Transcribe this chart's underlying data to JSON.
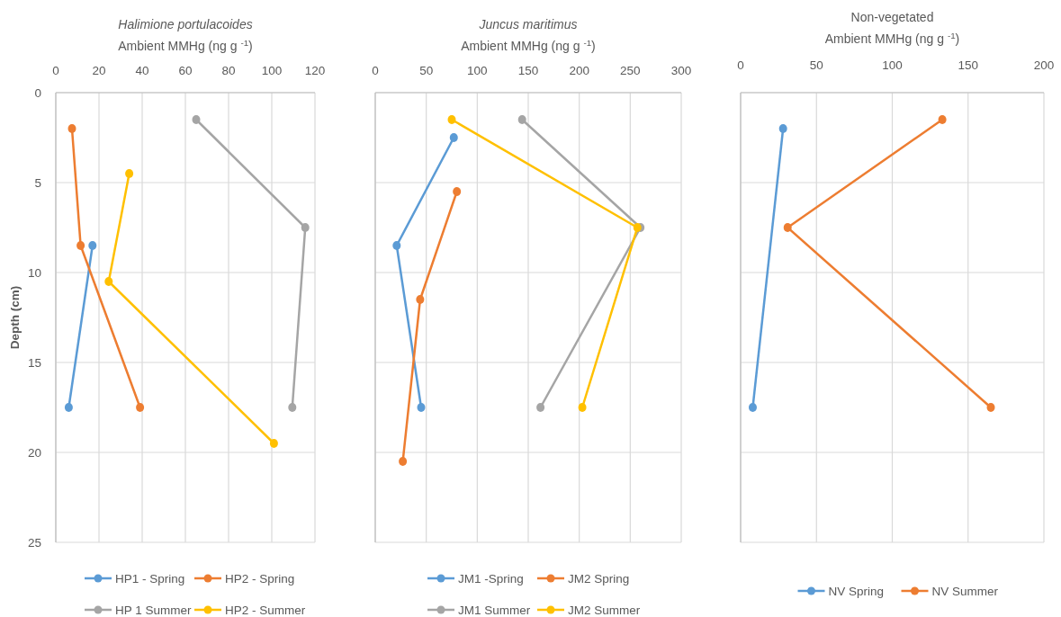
{
  "chart_data": [
    {
      "type": "line",
      "title": "Halimione portulacoides",
      "xlabel": "Ambient MMHg (ng g $^{-1}$)",
      "ylabel": "Depth (cm)",
      "orientation": "horizontal",
      "xlim": [
        0,
        120
      ],
      "xticks": [
        0,
        20,
        40,
        60,
        80,
        100,
        120
      ],
      "ylim": [
        25,
        0
      ],
      "yticks": [
        0,
        5,
        10,
        15,
        20,
        25
      ],
      "grid": true,
      "legend": "bottom",
      "marker": "circle",
      "line_style": "solid",
      "series": [
        {
          "name": "HP1 - Spring",
          "color": "#5b9bd5",
          "x": [
            8.5,
            17.5
          ],
          "values": [
            17,
            6
          ]
        },
        {
          "name": "HP2  - Spring",
          "color": "#ed7d31",
          "x": [
            2,
            8.5,
            17.5
          ],
          "values": [
            7.5,
            11.5,
            39
          ]
        },
        {
          "name": "HP 1 Summer",
          "color": "#a5a5a5",
          "x": [
            1.5,
            7.5,
            17.5
          ],
          "values": [
            65,
            115.5,
            109.5
          ]
        },
        {
          "name": "HP2 - Summer",
          "color": "#ffc000",
          "x": [
            4.5,
            10.5,
            19.5
          ],
          "values": [
            34,
            24.5,
            101
          ]
        }
      ]
    },
    {
      "type": "line",
      "title": "Juncus maritimus",
      "xlabel": "Ambient MMHg (ng g $^{-1}$)",
      "orientation": "horizontal",
      "xlim": [
        0,
        300
      ],
      "xticks": [
        0,
        50,
        100,
        150,
        200,
        250,
        300
      ],
      "ylim": [
        25,
        0
      ],
      "yticks": [
        0,
        5,
        10,
        15,
        20,
        25
      ],
      "tick_labels": "x",
      "grid": true,
      "legend": "bottom",
      "marker": "circle",
      "line_style": "solid",
      "series": [
        {
          "name": "JM1 -Spring",
          "color": "#5b9bd5",
          "x": [
            2.5,
            8.5,
            17.5
          ],
          "values": [
            77,
            21,
            45
          ]
        },
        {
          "name": "JM2 Spring",
          "color": "#ed7d31",
          "x": [
            5.5,
            11.5,
            20.5
          ],
          "values": [
            80,
            44,
            27
          ]
        },
        {
          "name": "JM1 Summer",
          "color": "#a5a5a5",
          "x": [
            1.5,
            7.5,
            17.5
          ],
          "values": [
            144,
            260,
            162
          ]
        },
        {
          "name": "JM2 Summer",
          "color": "#ffc000",
          "x": [
            1.5,
            7.5,
            17.5
          ],
          "values": [
            75,
            257,
            203
          ]
        }
      ]
    },
    {
      "type": "line",
      "title": "Non-vegetated",
      "xlabel": "Ambient MMHg (ng g $^{-1}$)",
      "orientation": "horizontal",
      "xlim": [
        0,
        200
      ],
      "xticks": [
        0,
        50,
        100,
        150,
        200
      ],
      "ylim": [
        25,
        0
      ],
      "yticks": [
        0,
        5,
        10,
        15,
        20,
        25
      ],
      "tick_labels": "x",
      "grid": true,
      "legend": "bottom",
      "marker": "circle",
      "line_style": "solid",
      "series": [
        {
          "name": "NV Spring",
          "color": "#5b9bd5",
          "x": [
            2,
            17.5
          ],
          "values": [
            28,
            8
          ]
        },
        {
          "name": "NV Summer",
          "color": "#ed7d31",
          "x": [
            1.5,
            7.5,
            17.5
          ],
          "values": [
            133,
            31,
            165
          ]
        }
      ]
    }
  ]
}
